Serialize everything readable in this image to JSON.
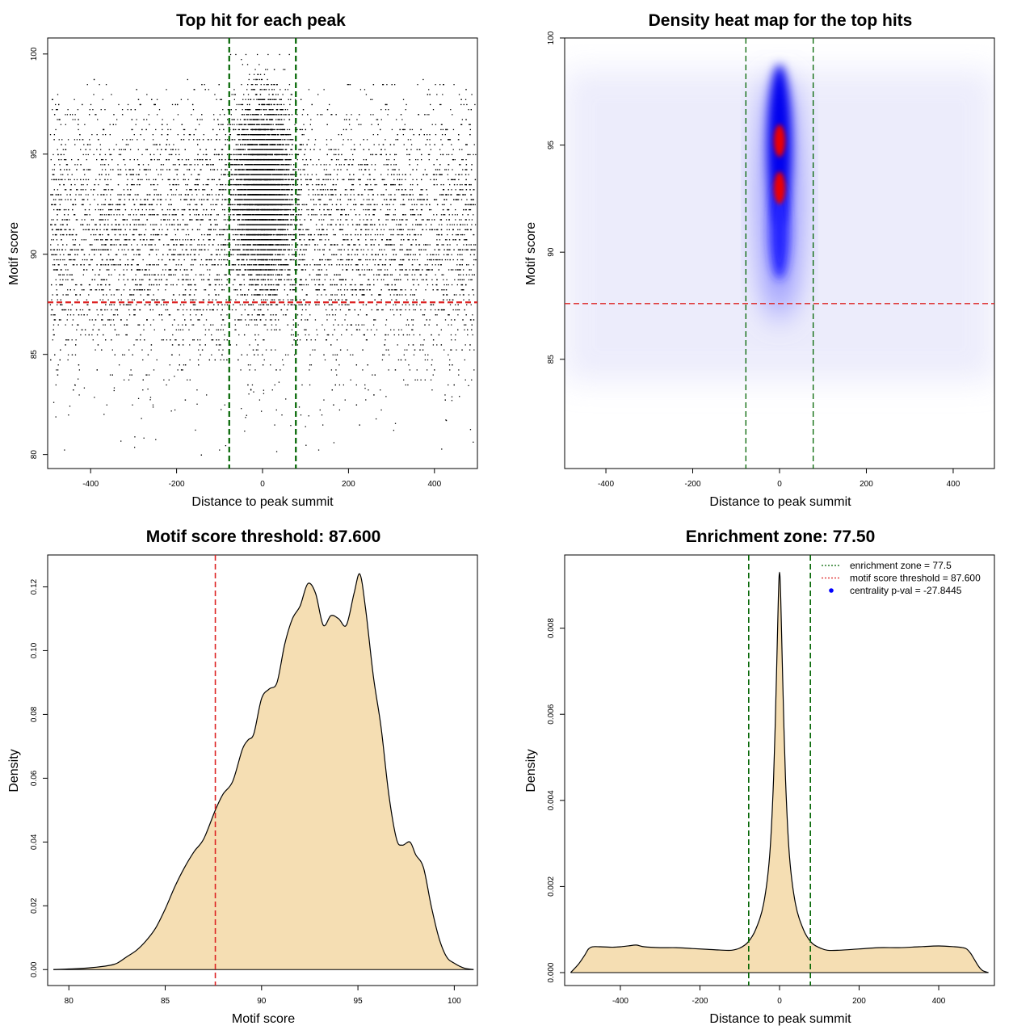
{
  "chart_data": [
    {
      "type": "scatter",
      "title": "Top hit for each peak",
      "xlabel": "Distance to peak summit",
      "ylabel": "Motif score",
      "xlim": [
        -500,
        500
      ],
      "ylim": [
        79.3,
        100.8
      ],
      "xticks": [
        -400,
        -200,
        0,
        200,
        400
      ],
      "yticks": [
        80,
        85,
        90,
        95,
        100
      ],
      "hlines": [
        {
          "value": 87.6,
          "color": "#dd2222",
          "style": "dashed"
        }
      ],
      "vlines": [
        {
          "value": -77.5,
          "color": "#006400",
          "style": "dashed"
        },
        {
          "value": 77.5,
          "color": "#006400",
          "style": "dashed"
        }
      ],
      "points_description_free": true,
      "score_density_peaks": [
        92.3,
        95.1
      ],
      "grid": false
    },
    {
      "type": "heatmap",
      "title": "Density heat map for the top hits",
      "xlabel": "Distance to peak summit",
      "ylabel": "Motif score",
      "xlim": [
        -495,
        495
      ],
      "ylim": [
        79.9,
        100
      ],
      "xticks": [
        -400,
        -200,
        0,
        200,
        400
      ],
      "yticks": [
        85,
        90,
        95,
        100
      ],
      "hotspots": [
        {
          "x": 0,
          "y": 95.2,
          "level": "red"
        },
        {
          "x": 0,
          "y": 93.0,
          "level": "red"
        }
      ],
      "hlines": [
        {
          "value": 87.6,
          "color": "#dd2222",
          "style": "dashed"
        }
      ],
      "vlines": [
        {
          "value": -77.5,
          "color": "#006400",
          "style": "dashed"
        },
        {
          "value": 77.5,
          "color": "#006400",
          "style": "dashed"
        }
      ],
      "colors": [
        "#ffffff",
        "#0000ff",
        "#ff0000"
      ]
    },
    {
      "type": "area",
      "title": "Motif score threshold: 87.600",
      "xlabel": "Motif score",
      "ylabel": "Density",
      "xlim": [
        78.9,
        101.2
      ],
      "ylim": [
        -0.005,
        0.13
      ],
      "xticks": [
        80,
        85,
        90,
        95,
        100
      ],
      "yticks": [
        0.0,
        0.02,
        0.04,
        0.06,
        0.08,
        0.1,
        0.12
      ],
      "ytick_labels": [
        "0.00",
        "0.02",
        "0.04",
        "0.06",
        "0.08",
        "0.10",
        "0.12"
      ],
      "x": [
        79.2,
        80,
        81,
        82,
        82.5,
        83,
        83.5,
        84,
        84.5,
        85,
        85.5,
        86,
        86.5,
        87,
        87.6,
        88,
        88.5,
        89,
        89.3,
        89.6,
        90,
        90.4,
        90.8,
        91.2,
        91.6,
        92,
        92.4,
        92.8,
        93.2,
        93.6,
        94,
        94.4,
        94.8,
        95.1,
        95.4,
        95.8,
        96.2,
        96.6,
        97,
        97.3,
        97.7,
        98,
        98.4,
        98.8,
        99.2,
        99.6,
        100,
        100.5,
        101
      ],
      "y": [
        0.0,
        0.0002,
        0.0005,
        0.0012,
        0.002,
        0.004,
        0.006,
        0.009,
        0.013,
        0.019,
        0.026,
        0.032,
        0.037,
        0.041,
        0.05,
        0.055,
        0.059,
        0.069,
        0.072,
        0.074,
        0.085,
        0.088,
        0.09,
        0.102,
        0.11,
        0.114,
        0.121,
        0.118,
        0.108,
        0.111,
        0.11,
        0.108,
        0.118,
        0.124,
        0.113,
        0.092,
        0.076,
        0.055,
        0.041,
        0.039,
        0.04,
        0.036,
        0.032,
        0.02,
        0.01,
        0.004,
        0.002,
        0.0005,
        0.0
      ],
      "vlines": [
        {
          "value": 87.6,
          "color": "#dd2222",
          "style": "dashed"
        }
      ],
      "fill": "#f5deb3"
    },
    {
      "type": "area",
      "title": "Enrichment zone: 77.50",
      "xlabel": "Distance to peak summit",
      "ylabel": "Density",
      "xlim": [
        -540,
        540
      ],
      "ylim": [
        -0.0003,
        0.0097
      ],
      "xticks": [
        -400,
        -200,
        0,
        200,
        400
      ],
      "yticks": [
        0.0,
        0.002,
        0.004,
        0.006,
        0.008
      ],
      "ytick_labels": [
        "0.000",
        "0.002",
        "0.004",
        "0.006",
        "0.008"
      ],
      "x": [
        -525,
        -505,
        -490,
        -480,
        -470,
        -450,
        -420,
        -400,
        -380,
        -360,
        -340,
        -300,
        -260,
        -220,
        -180,
        -140,
        -120,
        -100,
        -80,
        -60,
        -40,
        -25,
        -15,
        -8,
        -3,
        0,
        3,
        8,
        15,
        25,
        40,
        60,
        80,
        100,
        120,
        150,
        200,
        250,
        300,
        350,
        400,
        440,
        460,
        470,
        480,
        490,
        500,
        510,
        525
      ],
      "y": [
        0.0,
        0.0002,
        0.0004,
        0.00055,
        0.0006,
        0.0006,
        0.00059,
        0.0006,
        0.00062,
        0.00064,
        0.0006,
        0.00058,
        0.00058,
        0.00056,
        0.00054,
        0.00052,
        0.00052,
        0.00057,
        0.0007,
        0.001,
        0.0016,
        0.0027,
        0.0045,
        0.0068,
        0.0087,
        0.0093,
        0.0087,
        0.0068,
        0.0045,
        0.0027,
        0.0016,
        0.001,
        0.0007,
        0.00058,
        0.00052,
        0.00052,
        0.00055,
        0.00058,
        0.00058,
        0.0006,
        0.00062,
        0.0006,
        0.00058,
        0.00055,
        0.00045,
        0.0003,
        0.00015,
        5e-05,
        0.0
      ],
      "vlines": [
        {
          "value": -77.5,
          "color": "#006400",
          "style": "dashed"
        },
        {
          "value": 77.5,
          "color": "#006400",
          "style": "dashed"
        }
      ],
      "fill": "#f5deb3",
      "legend": {
        "placement": "top-right",
        "entries": [
          {
            "label": "enrichment zone = 77.5",
            "color": "#006400",
            "kind": "dotted-line"
          },
          {
            "label": "motif score threshold = 87.600",
            "color": "#dd2222",
            "kind": "dotted-line"
          },
          {
            "label": "centrality p-val = -27.8445",
            "color": "#0000ff",
            "kind": "point"
          }
        ]
      }
    }
  ]
}
